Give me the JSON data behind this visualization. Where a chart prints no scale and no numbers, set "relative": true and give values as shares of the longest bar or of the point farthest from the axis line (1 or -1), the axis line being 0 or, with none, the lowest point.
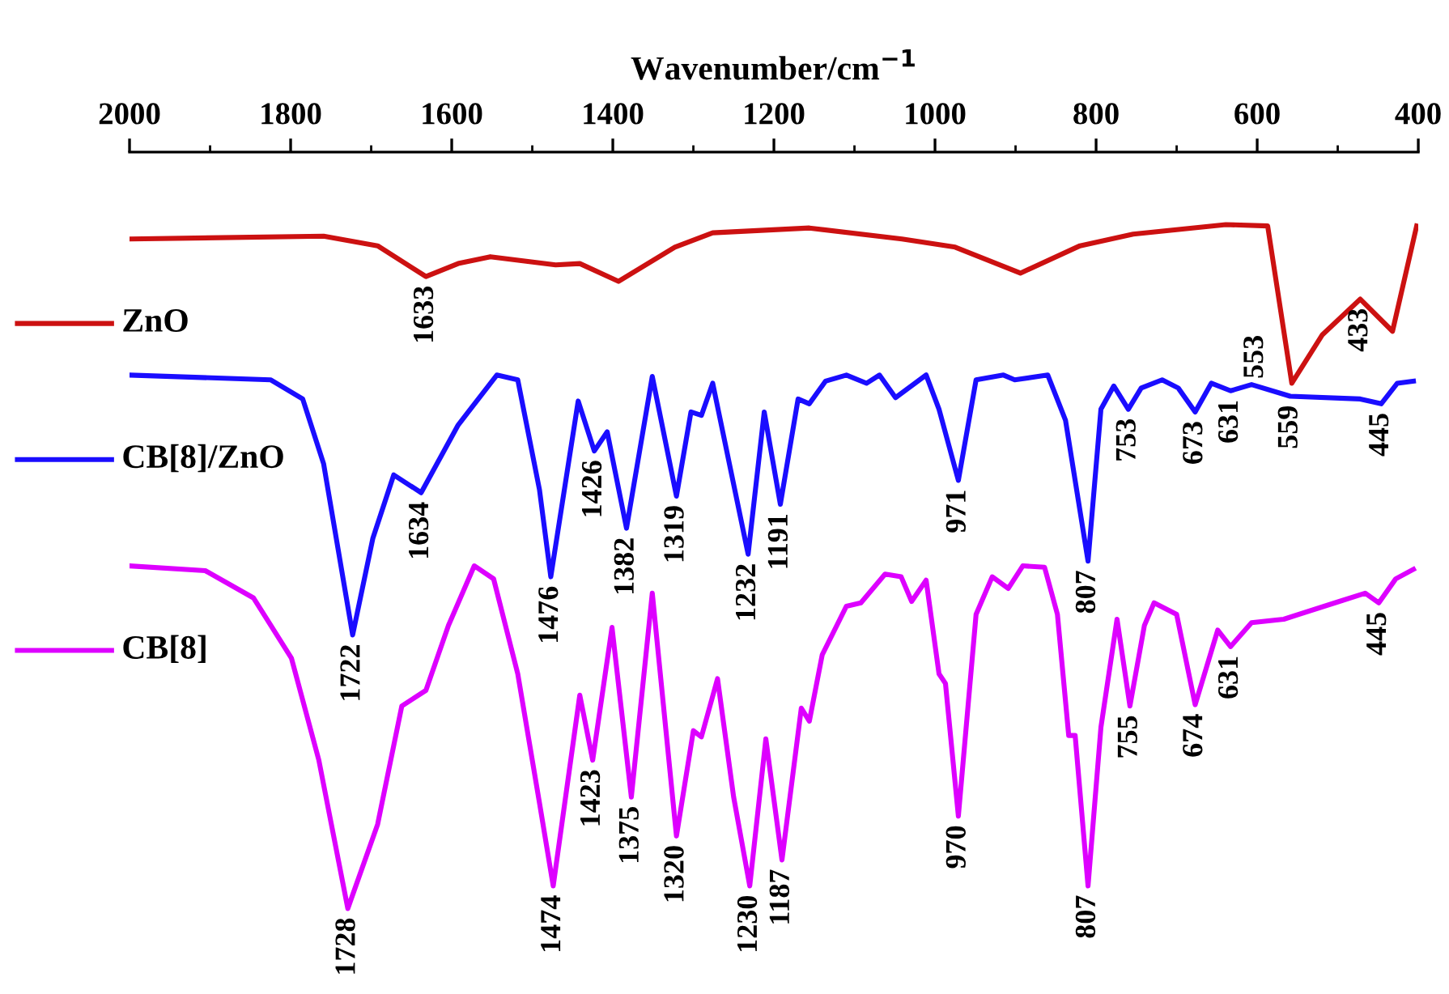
{
  "chart_data": {
    "type": "line",
    "relative": true,
    "xlabel": "Wavenumber/cm$^{−1}$",
    "xlim": [
      2000,
      400
    ],
    "xticks": [
      2000,
      1800,
      1600,
      1400,
      1200,
      1000,
      800,
      600,
      400
    ],
    "legend": "left",
    "grid": false,
    "marker": "none",
    "line_style": "solid",
    "series": [
      {
        "name": "ZnO",
        "color": "#cc1111",
        "x": [
          2000,
          1759,
          1692,
          1632,
          1592,
          1552,
          1471,
          1441,
          1393,
          1323,
          1276,
          1156,
          1041,
          975,
          894,
          820,
          754,
          639,
          587,
          557,
          519,
          472,
          432,
          402
        ],
        "values": [
          0.979,
          0.983,
          0.969,
          0.924,
          0.943,
          0.953,
          0.941,
          0.943,
          0.917,
          0.967,
          0.988,
          0.995,
          0.979,
          0.967,
          0.929,
          0.969,
          0.986,
          1.0,
          0.998,
          0.768,
          0.839,
          0.891,
          0.844,
          0.998
        ]
      },
      {
        "name": "CB[8]/ZnO",
        "color": "#1a0dff",
        "x": [
          2000,
          1825,
          1785,
          1759,
          1723,
          1698,
          1672,
          1638,
          1592,
          1544,
          1518,
          1491,
          1477,
          1443,
          1423,
          1407,
          1383,
          1351,
          1321,
          1303,
          1290,
          1276,
          1232,
          1212,
          1192,
          1170,
          1156,
          1136,
          1110,
          1085,
          1069,
          1049,
          1011,
          995,
          971,
          949,
          915,
          901,
          860,
          838,
          810,
          794,
          778,
          760,
          744,
          718,
          698,
          677,
          657,
          633,
          607,
          559,
          472,
          446,
          426,
          406
        ],
        "values": [
          0.78,
          0.773,
          0.745,
          0.65,
          0.4,
          0.541,
          0.634,
          0.608,
          0.707,
          0.78,
          0.773,
          0.612,
          0.485,
          0.742,
          0.669,
          0.697,
          0.556,
          0.778,
          0.603,
          0.726,
          0.721,
          0.768,
          0.518,
          0.726,
          0.591,
          0.745,
          0.738,
          0.771,
          0.78,
          0.768,
          0.78,
          0.747,
          0.78,
          0.73,
          0.626,
          0.773,
          0.78,
          0.773,
          0.78,
          0.714,
          0.508,
          0.73,
          0.764,
          0.73,
          0.761,
          0.773,
          0.761,
          0.726,
          0.768,
          0.757,
          0.766,
          0.749,
          0.745,
          0.738,
          0.768,
          0.771
        ]
      },
      {
        "name": "CB[8]",
        "color": "#dd00ff",
        "x": [
          2000,
          1906,
          1846,
          1799,
          1765,
          1729,
          1692,
          1662,
          1632,
          1604,
          1572,
          1548,
          1518,
          1491,
          1474,
          1441,
          1425,
          1401,
          1377,
          1351,
          1321,
          1300,
          1290,
          1270,
          1250,
          1230,
          1210,
          1190,
          1166,
          1156,
          1140,
          1110,
          1092,
          1062,
          1042,
          1029,
          1011,
          995,
          987,
          971,
          949,
          929,
          909,
          891,
          864,
          848,
          834,
          826,
          810,
          794,
          774,
          758,
          740,
          728,
          700,
          677,
          649,
          633,
          607,
          567,
          498,
          466,
          449,
          428,
          406
        ],
        "values": [
          0.501,
          0.494,
          0.454,
          0.366,
          0.217,
          0.0,
          0.123,
          0.296,
          0.319,
          0.414,
          0.501,
          0.482,
          0.343,
          0.154,
          0.033,
          0.312,
          0.217,
          0.411,
          0.163,
          0.461,
          0.106,
          0.26,
          0.251,
          0.336,
          0.163,
          0.033,
          0.248,
          0.071,
          0.293,
          0.274,
          0.371,
          0.442,
          0.447,
          0.489,
          0.485,
          0.449,
          0.48,
          0.343,
          0.329,
          0.135,
          0.43,
          0.485,
          0.468,
          0.501,
          0.499,
          0.43,
          0.253,
          0.253,
          0.033,
          0.265,
          0.423,
          0.296,
          0.414,
          0.447,
          0.43,
          0.298,
          0.407,
          0.383,
          0.418,
          0.423,
          0.449,
          0.461,
          0.447,
          0.482,
          0.496
        ]
      }
    ],
    "annotations": [
      {
        "text": "1633",
        "x": 1632,
        "y": 0.924
      },
      {
        "text": "553",
        "x": 557,
        "y": 0.768
      },
      {
        "text": "433",
        "x": 472,
        "y": 0.891
      },
      {
        "text": "1722",
        "x": 1723,
        "y": 0.4
      },
      {
        "text": "1634",
        "x": 1638,
        "y": 0.608
      },
      {
        "text": "1476",
        "x": 1477,
        "y": 0.485
      },
      {
        "text": "1426",
        "x": 1423,
        "y": 0.669
      },
      {
        "text": "1382",
        "x": 1383,
        "y": 0.556
      },
      {
        "text": "1319",
        "x": 1321,
        "y": 0.603
      },
      {
        "text": "1232",
        "x": 1232,
        "y": 0.518
      },
      {
        "text": "1191",
        "x": 1192,
        "y": 0.591
      },
      {
        "text": "971",
        "x": 971,
        "y": 0.626
      },
      {
        "text": "807",
        "x": 810,
        "y": 0.508
      },
      {
        "text": "753",
        "x": 760,
        "y": 0.73
      },
      {
        "text": "673",
        "x": 677,
        "y": 0.726
      },
      {
        "text": "631",
        "x": 633,
        "y": 0.757
      },
      {
        "text": "559",
        "x": 559,
        "y": 0.749
      },
      {
        "text": "445",
        "x": 446,
        "y": 0.738
      },
      {
        "text": "1728",
        "x": 1729,
        "y": 0.0
      },
      {
        "text": "1474",
        "x": 1474,
        "y": 0.033
      },
      {
        "text": "1423",
        "x": 1425,
        "y": 0.217
      },
      {
        "text": "1375",
        "x": 1377,
        "y": 0.163
      },
      {
        "text": "1320",
        "x": 1321,
        "y": 0.106
      },
      {
        "text": "1230",
        "x": 1230,
        "y": 0.033
      },
      {
        "text": "1187",
        "x": 1190,
        "y": 0.071
      },
      {
        "text": "970",
        "x": 971,
        "y": 0.135
      },
      {
        "text": "807",
        "x": 810,
        "y": 0.033
      },
      {
        "text": "755",
        "x": 758,
        "y": 0.296
      },
      {
        "text": "674",
        "x": 677,
        "y": 0.298
      },
      {
        "text": "631",
        "x": 633,
        "y": 0.383
      },
      {
        "text": "445",
        "x": 449,
        "y": 0.447
      }
    ]
  }
}
